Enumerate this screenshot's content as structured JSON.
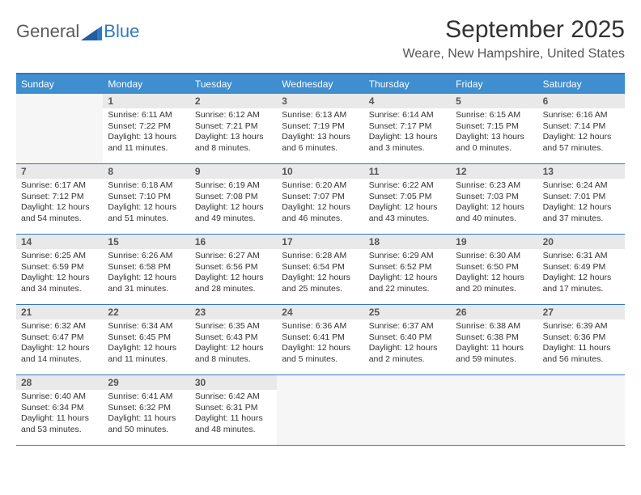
{
  "logo": {
    "word1": "General",
    "word2": "Blue"
  },
  "title": "September 2025",
  "location": "Weare, New Hampshire, United States",
  "colors": {
    "accent": "#2f78c4",
    "header_bg": "#3e8ed0",
    "daynum_bg": "#e9e9e9",
    "text": "#333333"
  },
  "weekdays": [
    "Sunday",
    "Monday",
    "Tuesday",
    "Wednesday",
    "Thursday",
    "Friday",
    "Saturday"
  ],
  "start_weekday_index": 1,
  "days": [
    {
      "n": 1,
      "sr": "6:11 AM",
      "ss": "7:22 PM",
      "dl": "13 hours and 11 minutes."
    },
    {
      "n": 2,
      "sr": "6:12 AM",
      "ss": "7:21 PM",
      "dl": "13 hours and 8 minutes."
    },
    {
      "n": 3,
      "sr": "6:13 AM",
      "ss": "7:19 PM",
      "dl": "13 hours and 6 minutes."
    },
    {
      "n": 4,
      "sr": "6:14 AM",
      "ss": "7:17 PM",
      "dl": "13 hours and 3 minutes."
    },
    {
      "n": 5,
      "sr": "6:15 AM",
      "ss": "7:15 PM",
      "dl": "13 hours and 0 minutes."
    },
    {
      "n": 6,
      "sr": "6:16 AM",
      "ss": "7:14 PM",
      "dl": "12 hours and 57 minutes."
    },
    {
      "n": 7,
      "sr": "6:17 AM",
      "ss": "7:12 PM",
      "dl": "12 hours and 54 minutes."
    },
    {
      "n": 8,
      "sr": "6:18 AM",
      "ss": "7:10 PM",
      "dl": "12 hours and 51 minutes."
    },
    {
      "n": 9,
      "sr": "6:19 AM",
      "ss": "7:08 PM",
      "dl": "12 hours and 49 minutes."
    },
    {
      "n": 10,
      "sr": "6:20 AM",
      "ss": "7:07 PM",
      "dl": "12 hours and 46 minutes."
    },
    {
      "n": 11,
      "sr": "6:22 AM",
      "ss": "7:05 PM",
      "dl": "12 hours and 43 minutes."
    },
    {
      "n": 12,
      "sr": "6:23 AM",
      "ss": "7:03 PM",
      "dl": "12 hours and 40 minutes."
    },
    {
      "n": 13,
      "sr": "6:24 AM",
      "ss": "7:01 PM",
      "dl": "12 hours and 37 minutes."
    },
    {
      "n": 14,
      "sr": "6:25 AM",
      "ss": "6:59 PM",
      "dl": "12 hours and 34 minutes."
    },
    {
      "n": 15,
      "sr": "6:26 AM",
      "ss": "6:58 PM",
      "dl": "12 hours and 31 minutes."
    },
    {
      "n": 16,
      "sr": "6:27 AM",
      "ss": "6:56 PM",
      "dl": "12 hours and 28 minutes."
    },
    {
      "n": 17,
      "sr": "6:28 AM",
      "ss": "6:54 PM",
      "dl": "12 hours and 25 minutes."
    },
    {
      "n": 18,
      "sr": "6:29 AM",
      "ss": "6:52 PM",
      "dl": "12 hours and 22 minutes."
    },
    {
      "n": 19,
      "sr": "6:30 AM",
      "ss": "6:50 PM",
      "dl": "12 hours and 20 minutes."
    },
    {
      "n": 20,
      "sr": "6:31 AM",
      "ss": "6:49 PM",
      "dl": "12 hours and 17 minutes."
    },
    {
      "n": 21,
      "sr": "6:32 AM",
      "ss": "6:47 PM",
      "dl": "12 hours and 14 minutes."
    },
    {
      "n": 22,
      "sr": "6:34 AM",
      "ss": "6:45 PM",
      "dl": "12 hours and 11 minutes."
    },
    {
      "n": 23,
      "sr": "6:35 AM",
      "ss": "6:43 PM",
      "dl": "12 hours and 8 minutes."
    },
    {
      "n": 24,
      "sr": "6:36 AM",
      "ss": "6:41 PM",
      "dl": "12 hours and 5 minutes."
    },
    {
      "n": 25,
      "sr": "6:37 AM",
      "ss": "6:40 PM",
      "dl": "12 hours and 2 minutes."
    },
    {
      "n": 26,
      "sr": "6:38 AM",
      "ss": "6:38 PM",
      "dl": "11 hours and 59 minutes."
    },
    {
      "n": 27,
      "sr": "6:39 AM",
      "ss": "6:36 PM",
      "dl": "11 hours and 56 minutes."
    },
    {
      "n": 28,
      "sr": "6:40 AM",
      "ss": "6:34 PM",
      "dl": "11 hours and 53 minutes."
    },
    {
      "n": 29,
      "sr": "6:41 AM",
      "ss": "6:32 PM",
      "dl": "11 hours and 50 minutes."
    },
    {
      "n": 30,
      "sr": "6:42 AM",
      "ss": "6:31 PM",
      "dl": "11 hours and 48 minutes."
    }
  ],
  "labels": {
    "sunrise_prefix": "Sunrise: ",
    "sunset_prefix": "Sunset: ",
    "daylight_prefix": "Daylight: "
  }
}
